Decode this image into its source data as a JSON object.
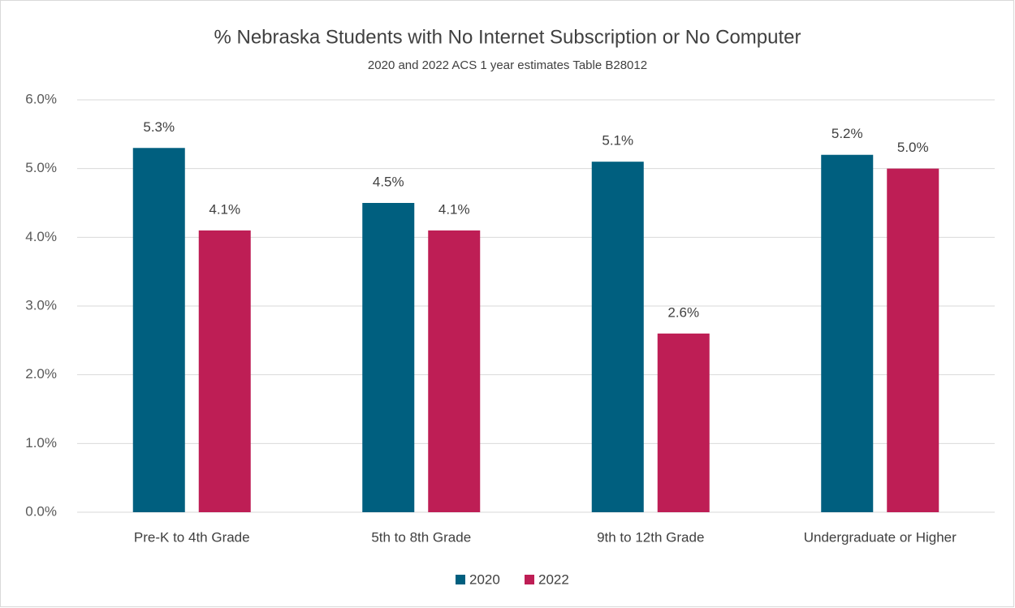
{
  "chart_data": {
    "type": "bar",
    "title": "% Nebraska Students with No Internet Subscription or No Computer",
    "subtitle": "2020 and 2022 ACS 1 year estimates Table B28012",
    "categories": [
      "Pre-K to 4th Grade",
      "5th to 8th Grade",
      "9th to 12th Grade",
      "Undergraduate or Higher"
    ],
    "series": [
      {
        "name": "2020",
        "color": "#005f7f",
        "values": [
          5.3,
          4.5,
          5.1,
          5.2
        ],
        "value_labels": [
          "5.3%",
          "4.5%",
          "5.1%",
          "5.2%"
        ]
      },
      {
        "name": "2022",
        "color": "#be1e55",
        "values": [
          4.1,
          4.1,
          2.6,
          5.0
        ],
        "value_labels": [
          "4.1%",
          "4.1%",
          "2.6%",
          "5.0%"
        ]
      }
    ],
    "ylim": [
      0,
      6
    ],
    "yticks": [
      {
        "value": 0,
        "label": "0.0%"
      },
      {
        "value": 1,
        "label": "1.0%"
      },
      {
        "value": 2,
        "label": "2.0%"
      },
      {
        "value": 3,
        "label": "3.0%"
      },
      {
        "value": 4,
        "label": "4.0%"
      },
      {
        "value": 5,
        "label": "5.0%"
      },
      {
        "value": 6,
        "label": "6.0%"
      }
    ],
    "grid": true,
    "legend": "bottom"
  }
}
